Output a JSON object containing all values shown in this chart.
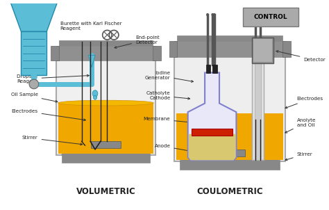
{
  "bg_color": "#f0f0f0",
  "title_vol": "VOLUMETRIC",
  "title_coul": "COULOMETRIC",
  "control_label": "CONTROL",
  "colors": {
    "burette_blue": "#5bbdd6",
    "burette_dark": "#2288aa",
    "vessel_gray_light": "#d0d0d0",
    "vessel_gray_mid": "#aaaaaa",
    "vessel_gray_dark": "#888888",
    "vessel_body": "#e8e8e8",
    "liquid_yellow": "#f0a800",
    "electrode_dark": "#222222",
    "stirrer_gray": "#888888",
    "drop_blue": "#5bbdd6",
    "inner_vessel_outline": "#8080cc",
    "inner_vessel_fill": "#e8e8f8",
    "membrane_red": "#cc2000",
    "control_box": "#aaaaaa",
    "control_text": "#000000",
    "detector_gray": "#909090",
    "tube_dark": "#444444",
    "white": "#ffffff",
    "text_dark": "#222222",
    "arrow_color": "#333333",
    "neck_collar": "#909090",
    "black_cap": "#222222"
  }
}
